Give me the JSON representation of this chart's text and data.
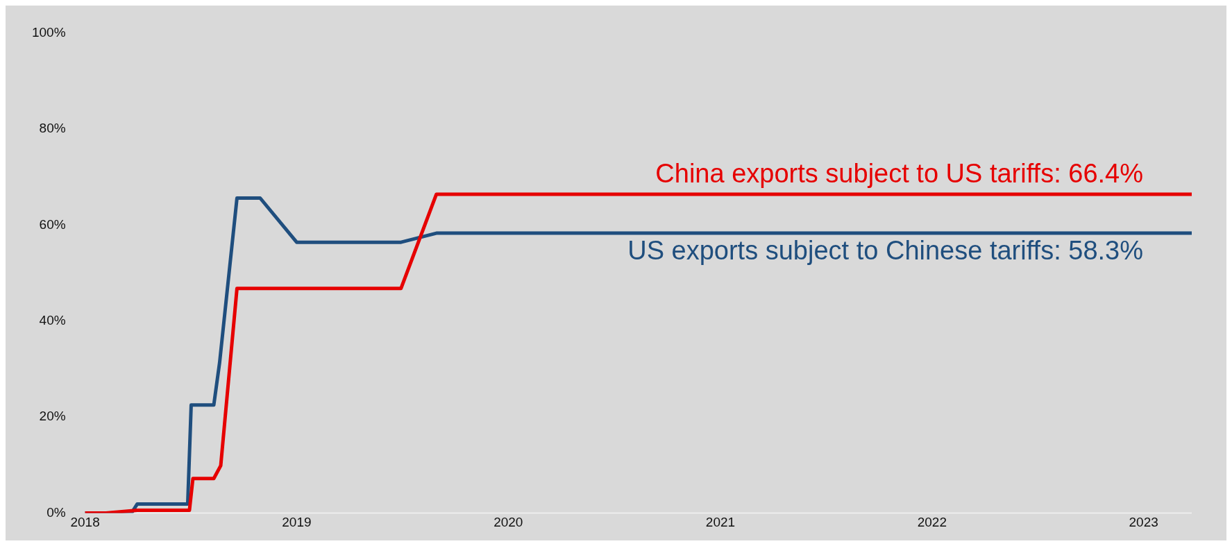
{
  "chart_data": {
    "type": "line",
    "xlim": [
      "2018-01-01",
      "2023-03-25"
    ],
    "ylim": [
      0,
      100
    ],
    "xticks": [
      {
        "value": "2018-01-01",
        "label": "2018"
      },
      {
        "value": "2019-01-01",
        "label": "2019"
      },
      {
        "value": "2020-01-01",
        "label": "2020"
      },
      {
        "value": "2021-01-01",
        "label": "2021"
      },
      {
        "value": "2022-01-01",
        "label": "2022"
      },
      {
        "value": "2023-01-01",
        "label": "2023"
      }
    ],
    "yticks": [
      {
        "value": 0,
        "label": "0%"
      },
      {
        "value": 20,
        "label": "20%"
      },
      {
        "value": 40,
        "label": "40%"
      },
      {
        "value": 60,
        "label": "60%"
      },
      {
        "value": 80,
        "label": "80%"
      },
      {
        "value": 100,
        "label": "100%"
      }
    ],
    "grid": false,
    "legend": false,
    "marker": "none",
    "line_style": "solid",
    "series": [
      {
        "name": "China exports subject to US tariffs: 66.4%",
        "color": "#e60000",
        "x": [
          "2018-01-01",
          "2018-02-06",
          "2018-04-01",
          "2018-06-30",
          "2018-07-06",
          "2018-08-11",
          "2018-08-23",
          "2018-09-20",
          "2019-06-30",
          "2019-08-30",
          "2023-03-25"
        ],
        "values": [
          0,
          0,
          0.6,
          0.6,
          7.2,
          7.2,
          9.9,
          46.8,
          46.8,
          66.4,
          66.4
        ]
      },
      {
        "name": "US exports subject to Chinese tariffs: 58.3%",
        "color": "#1f4e7e",
        "x": [
          "2018-01-01",
          "2018-03-22",
          "2018-04-01",
          "2018-06-27",
          "2018-07-03",
          "2018-08-11",
          "2018-08-21",
          "2018-09-20",
          "2018-10-30",
          "2019-01-01",
          "2019-06-30",
          "2019-08-30",
          "2023-03-25"
        ],
        "values": [
          0,
          0,
          1.9,
          1.9,
          22.5,
          22.5,
          31.3,
          65.6,
          65.6,
          56.4,
          56.4,
          58.3,
          58.3
        ]
      }
    ]
  }
}
